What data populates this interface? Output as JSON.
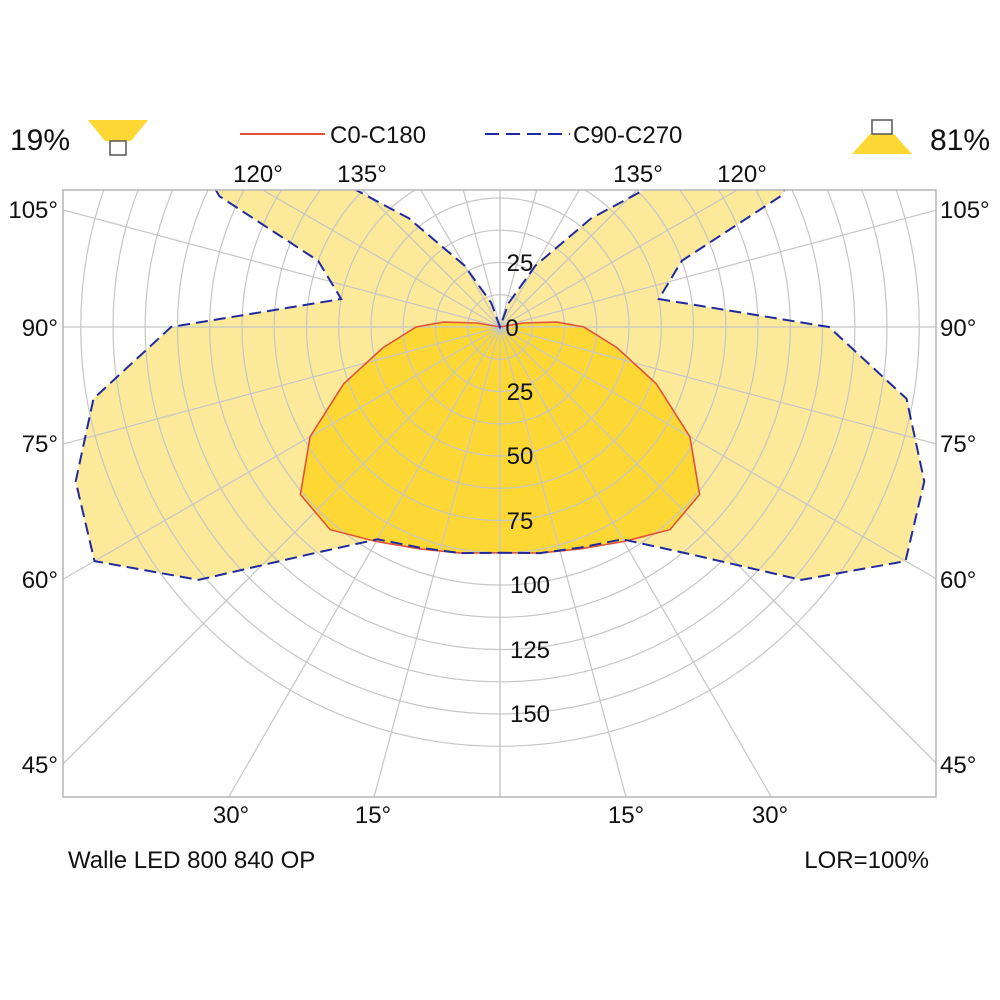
{
  "header": {
    "downward_share": "19%",
    "upward_share": "81%",
    "legend": [
      {
        "label": "C0-C180",
        "color": "#e0533a",
        "dash": false
      },
      {
        "label": "C90-C270",
        "color": "#1f2a9e",
        "dash": true
      }
    ]
  },
  "footer": {
    "luminaire_name": "Walle LED 800 840 OP",
    "lor": "LOR=100%"
  },
  "colors": {
    "upper_fill": "#fde99a",
    "lower_fill": "#fdd835",
    "grid": "#c6c6c6",
    "frame": "#b5b5b5",
    "c0_stroke": "#e0533a",
    "c90_stroke": "#1f2a9e"
  },
  "chart_data": {
    "type": "polar",
    "radial_ticks_upper": [
      "25",
      "0"
    ],
    "radial_ticks_lower": [
      "25",
      "50",
      "75",
      "100",
      "125",
      "150"
    ],
    "angle_labels_top": [
      "120°",
      "135°",
      "135°",
      "120°"
    ],
    "angle_labels_side": [
      "105°",
      "90°",
      "75°",
      "60°",
      "45°"
    ],
    "angle_labels_bottom": [
      "30°",
      "15°",
      "15°",
      "30°"
    ],
    "radial_rings": [
      25,
      50,
      75,
      100,
      125,
      150,
      175,
      200,
      225,
      250,
      275,
      300,
      325
    ],
    "radial_spokes_deg": [
      0,
      15,
      30,
      45,
      60,
      75,
      90,
      105,
      120,
      135,
      150,
      165,
      180
    ],
    "series": [
      {
        "name": "C0-C180",
        "points": [
          {
            "angle": 0,
            "value": 175
          },
          {
            "angle": 10,
            "value": 178
          },
          {
            "angle": 20,
            "value": 183
          },
          {
            "angle": 30,
            "value": 192
          },
          {
            "angle": 40,
            "value": 205
          },
          {
            "angle": 50,
            "value": 202
          },
          {
            "angle": 60,
            "value": 170
          },
          {
            "angle": 70,
            "value": 129
          },
          {
            "angle": 80,
            "value": 92
          },
          {
            "angle": 90,
            "value": 65
          },
          {
            "angle": 95,
            "value": 44
          },
          {
            "angle": 100,
            "value": 18
          },
          {
            "angle": 105,
            "value": 0
          }
        ]
      },
      {
        "name": "C90-C270",
        "points": [
          {
            "angle": 0,
            "value": 175
          },
          {
            "angle": 10,
            "value": 178
          },
          {
            "angle": 20,
            "value": 182
          },
          {
            "angle": 30,
            "value": 190
          },
          {
            "angle": 40,
            "value": 230
          },
          {
            "angle": 50,
            "value": 305
          },
          {
            "angle": 60,
            "value": 363
          },
          {
            "angle": 70,
            "value": 350
          },
          {
            "angle": 80,
            "value": 320
          },
          {
            "angle": 90,
            "value": 255
          },
          {
            "angle": 100,
            "value": 125
          },
          {
            "angle": 110,
            "value": 150
          },
          {
            "angle": 115,
            "value": 240
          },
          {
            "angle": 118,
            "value": 260
          },
          {
            "angle": 122,
            "value": 255
          },
          {
            "angle": 125,
            "value": 240
          },
          {
            "angle": 130,
            "value": 200
          },
          {
            "angle": 140,
            "value": 110
          },
          {
            "angle": 150,
            "value": 55
          },
          {
            "angle": 160,
            "value": 20
          },
          {
            "angle": 170,
            "value": 0
          }
        ]
      }
    ]
  }
}
